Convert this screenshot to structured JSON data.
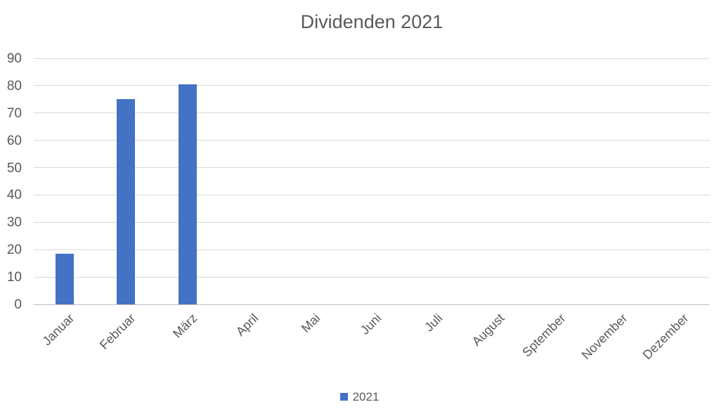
{
  "chart_data": {
    "type": "bar",
    "title": "Dividenden 2021",
    "categories": [
      "Januar",
      "Februar",
      "März",
      "April",
      "Mai",
      "Juni",
      "Juli",
      "August",
      "Sptember",
      "November",
      "Dezember"
    ],
    "series": [
      {
        "name": "2021",
        "values": [
          18.5,
          75,
          80.5,
          0,
          0,
          0,
          0,
          0,
          0,
          0,
          0
        ]
      }
    ],
    "xlabel": "",
    "ylabel": "",
    "ylim": [
      0,
      90
    ],
    "yticks": [
      0,
      10,
      20,
      30,
      40,
      50,
      60,
      70,
      80,
      90
    ],
    "grid": true,
    "legend_position": "bottom"
  },
  "legend": {
    "items": [
      {
        "label": "2021",
        "color": "#4472C4"
      }
    ]
  },
  "colors": {
    "bar": "#4472C4",
    "gridline": "#D9D9D9",
    "axis_line": "#BFBFBF",
    "text": "#595959",
    "background": "#FFFFFF"
  }
}
